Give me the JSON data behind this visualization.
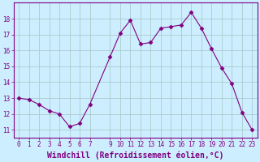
{
  "x": [
    0,
    1,
    2,
    3,
    4,
    5,
    6,
    7,
    9,
    10,
    11,
    12,
    13,
    14,
    15,
    16,
    17,
    18,
    19,
    20,
    21,
    22,
    23
  ],
  "y": [
    13.0,
    12.9,
    12.6,
    12.2,
    12.0,
    11.2,
    11.4,
    12.6,
    15.6,
    17.1,
    17.9,
    16.4,
    16.5,
    17.4,
    17.5,
    17.6,
    18.4,
    17.4,
    16.1,
    14.9,
    13.9,
    12.1,
    11.0
  ],
  "line_color": "#800080",
  "marker": "D",
  "marker_size": 2.5,
  "bg_color": "#cceeff",
  "grid_color": "#aacccc",
  "xlabel": "Windchill (Refroidissement éolien,°C)",
  "xlabel_color": "#800080",
  "ylim": [
    10.5,
    19.0
  ],
  "xlim": [
    -0.5,
    23.5
  ],
  "yticks": [
    11,
    12,
    13,
    14,
    15,
    16,
    17,
    18
  ],
  "xticks": [
    0,
    1,
    2,
    3,
    4,
    5,
    6,
    7,
    9,
    10,
    11,
    12,
    13,
    14,
    15,
    16,
    17,
    18,
    19,
    20,
    21,
    22,
    23
  ],
  "tick_color": "#800080",
  "tick_fontsize": 5.5,
  "xlabel_fontsize": 7.0,
  "axis_spine_color": "#800080"
}
